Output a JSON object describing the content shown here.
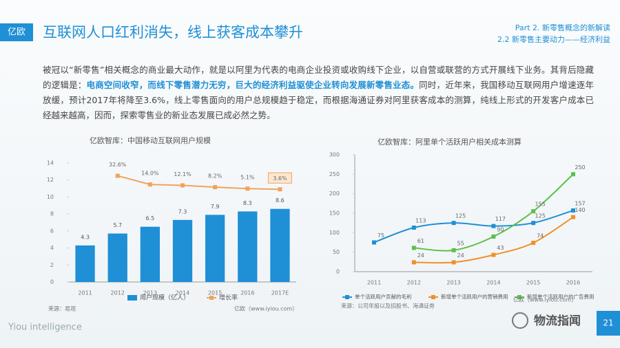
{
  "header": {
    "logo": "亿欧",
    "title": "互联网人口红利消失，线上获客成本攀升",
    "part": "Part 2. 新零售概念的新解读",
    "section": "2.2 新零售主要动力——经济利益"
  },
  "paragraph": {
    "intro": "被冠以“新零售”相关概念的商业最大动作，就是以阿里为代表的电商企业投资或收购线下企业，以自营或联营的方式开展线下业务。其背后隐藏的逻辑是：",
    "highlight": "电商空间收窄，而线下零售潜力无穷，巨大的经济利益驱使企业转向发展新零售业态。",
    "rest": "同时，近年来，我国移动互联网用户增速逐年放缓，预计2017年将降至3.6%，线上零售面向的用户总规模趋于稳定，而根据海通证券对阿里获客成本的测算，纯线上形式的开发客户成本已经越来越高，因而，探索零售业的新业态发展已成必然之势。"
  },
  "chart_data": [
    {
      "type": "bar",
      "title": "亿欧智库：中国移动互联网用户规模",
      "categories": [
        "2011",
        "2012",
        "2013",
        "2014",
        "2015",
        "2016",
        "2017E"
      ],
      "series": [
        {
          "name": "用户规模（亿人）",
          "type": "bar",
          "color": "#1f8fd6",
          "values": [
            4.3,
            5.7,
            6.5,
            7.3,
            7.9,
            8.3,
            8.6
          ]
        },
        {
          "name": "增长率",
          "type": "line",
          "axis": "y2",
          "color": "#f0a35a",
          "values": [
            null,
            32.6,
            14.0,
            12.1,
            8.2,
            5.1,
            3.6
          ],
          "value_labels": [
            null,
            "32.6%",
            "14.0%",
            "12.1%",
            "8.2%",
            "5.1%",
            "3.6%"
          ]
        }
      ],
      "ylim": [
        0,
        14
      ],
      "yticks": [
        0,
        2,
        4,
        6,
        8,
        10,
        12,
        14
      ],
      "y2lim": [
        -195,
        60
      ],
      "grid": false,
      "source": "来源：易观",
      "credit": "亿欧（www.iyiou.com）"
    },
    {
      "type": "line",
      "title": "亿欧智库：阿里单个活跃用户相关成本测算",
      "categories": [
        "2011",
        "2012",
        "2013",
        "2014",
        "2015",
        "2016"
      ],
      "series": [
        {
          "name": "单个活跃用户贡献的毛利",
          "color": "#1f8fd6",
          "values": [
            75,
            113,
            125,
            117,
            125,
            157
          ]
        },
        {
          "name": "新增单个活跃用户的营销费用",
          "color": "#f0902a",
          "values": [
            null,
            24,
            24,
            43,
            74,
            140
          ]
        },
        {
          "name": "新增单个活跃用户的广告费用",
          "color": "#5cc04a",
          "values": [
            null,
            61,
            55,
            90,
            155,
            250
          ]
        }
      ],
      "ylim": [
        0,
        300
      ],
      "yticks": [
        0,
        50,
        100,
        150,
        200,
        250,
        300
      ],
      "grid": false,
      "source": "来源：公司年报以及招股书、海通证券",
      "credit": "亿欧（www.iyiou.com）"
    }
  ],
  "footer": {
    "brand": "Yiou intelligence",
    "watermark": "物流指闻",
    "page": "21"
  }
}
